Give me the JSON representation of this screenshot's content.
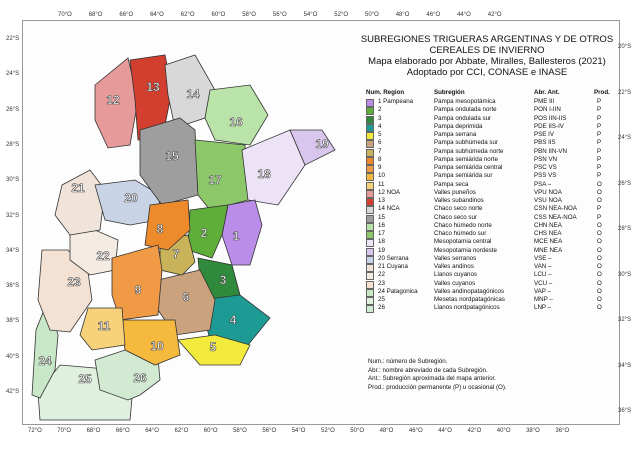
{
  "title_lines": [
    "SUBREGIONES TRIGUERAS ARGENTINAS Y DE OTROS",
    "CEREALES DE INVIERNO",
    "Mapa elaborado por Abbate, Miralles, Ballesteros (2021)",
    "Adoptado por CCI, CONASE e INASE"
  ],
  "legend_headers": {
    "num_region": "Num. Region",
    "subregion": "Subregión",
    "abr_ant": "Abr. Ant.",
    "prod": "Prod."
  },
  "legend": [
    {
      "num": "1 Pampeana",
      "name": "Pampa mesopotámica",
      "abr": "PME III",
      "prod": "P",
      "color": "#b98de8"
    },
    {
      "num": "2",
      "name": "Pampa ondulada norte",
      "abr": "PON I-IIN",
      "prod": "P",
      "color": "#5fae3a"
    },
    {
      "num": "3",
      "name": "Pampa ondulada sur",
      "abr": "POS IIN-IIS",
      "prod": "P",
      "color": "#2f8a3b"
    },
    {
      "num": "4",
      "name": "Pampa deprimida",
      "abr": "PDE IIS-IV",
      "prod": "P",
      "color": "#1e9a95"
    },
    {
      "num": "5",
      "name": "Pampa serrana",
      "abr": "PSE IV",
      "prod": "P",
      "color": "#f2ea3c"
    },
    {
      "num": "6",
      "name": "Pampa subhúmeda sur",
      "abr": "PBS IIS",
      "prod": "P",
      "color": "#caa27e"
    },
    {
      "num": "7",
      "name": "Pampa subhúmeda norte",
      "abr": "PBN IIN-VN",
      "prod": "P",
      "color": "#c8b25a"
    },
    {
      "num": "8",
      "name": "Pampa semiárida norte",
      "abr": "PSN VN",
      "prod": "P",
      "color": "#ec8a2c"
    },
    {
      "num": "9",
      "name": "Pampa semiárida central",
      "abr": "PSC VS",
      "prod": "P",
      "color": "#f19a46"
    },
    {
      "num": "10",
      "name": "Pampa semiárida sur",
      "abr": "PSS VS",
      "prod": "P",
      "color": "#f5b93d"
    },
    {
      "num": "11",
      "name": "Pampa seca",
      "abr": "PSA –",
      "prod": "O",
      "color": "#f7d27a"
    },
    {
      "num": "12 NOA",
      "name": "Valles puneños",
      "abr": "VPU NOA",
      "prod": "O",
      "color": "#e79a9a"
    },
    {
      "num": "13",
      "name": "Valles subandinos",
      "abr": "VSU NOA",
      "prod": "O",
      "color": "#d23f2f"
    },
    {
      "num": "14 NCA",
      "name": "Chaco seco norte",
      "abr": "CSN NEA-NOA",
      "prod": "P",
      "color": "#d8d8d8"
    },
    {
      "num": "15",
      "name": "Chaco seco sur",
      "abr": "CSS NEA-NOA",
      "prod": "P",
      "color": "#9e9e9e"
    },
    {
      "num": "16",
      "name": "Chaco húmedo norte",
      "abr": "CHN NEA",
      "prod": "O",
      "color": "#b9e3a8"
    },
    {
      "num": "17",
      "name": "Chaco húmedo sur",
      "abr": "CHS NEA",
      "prod": "O",
      "color": "#8cc86a"
    },
    {
      "num": "18",
      "name": "Mesopotamia central",
      "abr": "MCE NEA",
      "prod": "O",
      "color": "#ece3f6"
    },
    {
      "num": "19",
      "name": "Mesopotamia nordeste",
      "abr": "MNE NEA",
      "prod": "O",
      "color": "#d9c6ef"
    },
    {
      "num": "20 Serrana",
      "name": "Valles serranos",
      "abr": "VSE –",
      "prod": "O",
      "color": "#c9d3e6"
    },
    {
      "num": "21 Cuyana",
      "name": "Valles andinos",
      "abr": "VAN –",
      "prod": "O",
      "color": "#efe3da"
    },
    {
      "num": "22",
      "name": "Llanos cuyanos",
      "abr": "LCU –",
      "prod": "O",
      "color": "#f4ece2"
    },
    {
      "num": "23",
      "name": "Valles cuyanos",
      "abr": "VCU –",
      "prod": "O",
      "color": "#f3e1d3"
    },
    {
      "num": "24 Patagonica",
      "name": "Valles andinopatagónicos",
      "abr": "VAP –",
      "prod": "O",
      "color": "#c7e7c7"
    },
    {
      "num": "25",
      "name": "Mesetas nordpatagónicas",
      "abr": "MNP –",
      "prod": "O",
      "color": "#dff0df"
    },
    {
      "num": "26",
      "name": "Llanos nordpatagónicos",
      "abr": "LNP –",
      "prod": "O",
      "color": "#d1ead1"
    }
  ],
  "notes": [
    "Num.: número de Subregión.",
    "Abr.: nombre abreviado de cada Subregión.",
    "Ant.: Subregión aproximada del mapa anterior.",
    "Prod.: producción permanente (P) u ocasional (O)."
  ],
  "top_ticks": [
    "70°O",
    "68°O",
    "66°O",
    "64°O",
    "62°O",
    "60°O",
    "58°O",
    "56°O",
    "54°O",
    "52°O",
    "50°O",
    "48°O",
    "46°O",
    "44°O",
    "42°O"
  ],
  "bottom_ticks": [
    "72°O",
    "70°O",
    "68°O",
    "66°O",
    "64°O",
    "62°O",
    "60°O",
    "58°O",
    "56°O",
    "54°O",
    "52°O",
    "50°O",
    "48°O",
    "46°O",
    "44°O",
    "42°O",
    "40°O",
    "38°O",
    "36°O"
  ],
  "left_ticks": [
    "22°S",
    "24°S",
    "26°S",
    "28°S",
    "30°S",
    "32°S",
    "34°S",
    "36°S",
    "38°S",
    "40°S",
    "42°S"
  ],
  "right_ticks": [
    "20°S",
    "22°S",
    "24°S",
    "26°S",
    "28°S",
    "30°S",
    "32°S",
    "34°S",
    "36°S"
  ],
  "region_labels": [
    "1",
    "2",
    "3",
    "4",
    "5",
    "6",
    "7",
    "8",
    "9",
    "10",
    "11",
    "12",
    "13",
    "14",
    "15",
    "16",
    "17",
    "18",
    "19",
    "20",
    "21",
    "22",
    "23",
    "24",
    "25",
    "26"
  ]
}
